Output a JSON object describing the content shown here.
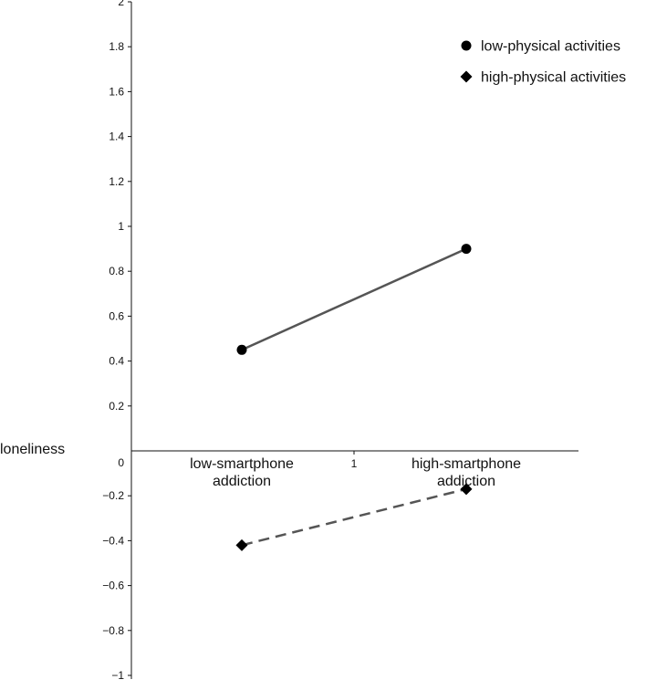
{
  "chart_data": {
    "type": "line",
    "ylabel": "loneliness",
    "ylim": [
      -1,
      2
    ],
    "yticks": [
      "2",
      "1.8",
      "1.6",
      "1.4",
      "1.2",
      "1",
      "0.8",
      "0.6",
      "0.4",
      "0.2",
      "0",
      "−0.2",
      "−0.4",
      "−0.6",
      "−0.8",
      "−1"
    ],
    "ytick_values": [
      2,
      1.8,
      1.6,
      1.4,
      1.2,
      1,
      0.8,
      0.6,
      0.4,
      0.2,
      0,
      -0.2,
      -0.4,
      -0.6,
      -0.8,
      -1
    ],
    "categories": [
      {
        "line1": "low-smartphone",
        "line2": "addiction"
      },
      {
        "line1": "high-smartphone",
        "line2": "addiction"
      }
    ],
    "x_mid_tick": "1",
    "legend_position": "top-right",
    "series": [
      {
        "name": "low-physical activities",
        "marker": "circle",
        "line_style": "solid",
        "color": "#555555",
        "values": [
          0.45,
          0.9
        ]
      },
      {
        "name": "high-physical activities",
        "marker": "diamond",
        "line_style": "dashed",
        "color": "#555555",
        "values": [
          -0.42,
          -0.17
        ]
      }
    ]
  }
}
